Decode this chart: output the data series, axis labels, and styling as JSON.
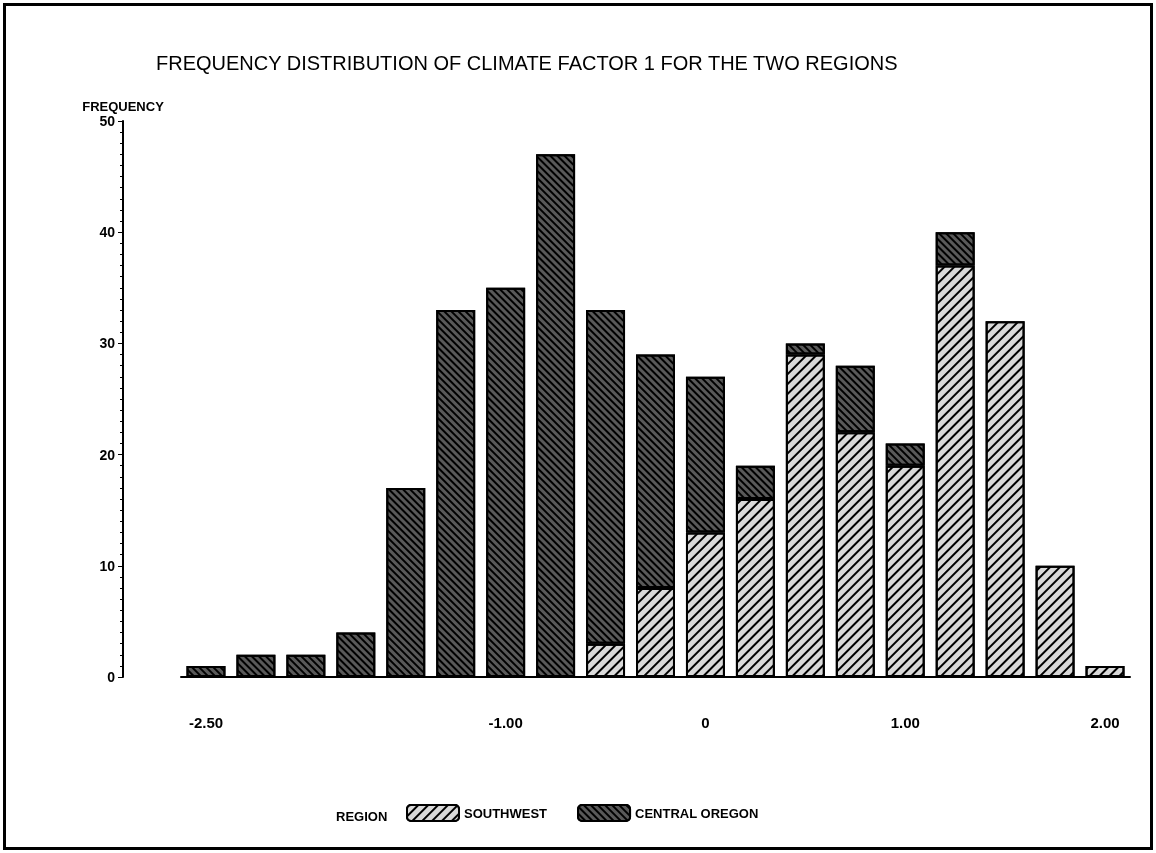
{
  "chart_data": {
    "type": "bar",
    "title": "FREQUENCY DISTRIBUTION OF CLIMATE FACTOR 1 FOR THE TWO REGIONS",
    "ylabel": "FREQUENCY",
    "legend_title": "REGION",
    "categories": [
      "-2.50",
      null,
      null,
      null,
      null,
      null,
      "-1.00",
      null,
      null,
      null,
      "0",
      null,
      null,
      null,
      "1.00",
      null,
      null,
      null,
      "2.00"
    ],
    "series": [
      {
        "name": "SOUTHWEST",
        "color": "#d9d9d9",
        "values": [
          0,
          0,
          0,
          0,
          0,
          0,
          0,
          0,
          3,
          8,
          13,
          16,
          29,
          22,
          19,
          37,
          32,
          10,
          1
        ]
      },
      {
        "name": "CENTRAL OREGON",
        "color": "#595959",
        "values": [
          1,
          2,
          2,
          4,
          17,
          33,
          35,
          47,
          30,
          21,
          14,
          3,
          1,
          6,
          2,
          3,
          0,
          0,
          0
        ]
      }
    ],
    "stacked": true,
    "ylim": [
      0,
      50
    ],
    "yticks": [
      0,
      10,
      20,
      30,
      40,
      50
    ],
    "grid": false,
    "legend": "bottom"
  }
}
